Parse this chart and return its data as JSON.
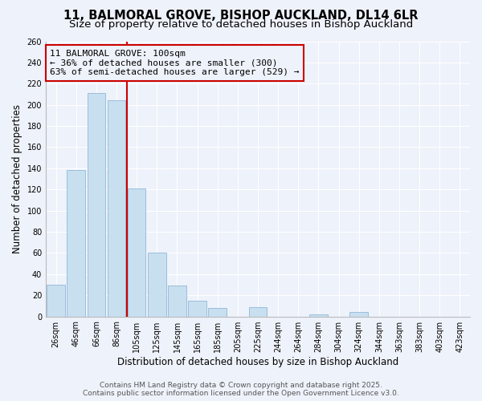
{
  "title_line1": "11, BALMORAL GROVE, BISHOP AUCKLAND, DL14 6LR",
  "title_line2": "Size of property relative to detached houses in Bishop Auckland",
  "xlabel": "Distribution of detached houses by size in Bishop Auckland",
  "ylabel": "Number of detached properties",
  "bar_color": "#c8dff0",
  "bar_edge_color": "#90b8d8",
  "bg_color": "#eef2fa",
  "grid_color": "#ffffff",
  "categories": [
    "26sqm",
    "46sqm",
    "66sqm",
    "86sqm",
    "105sqm",
    "125sqm",
    "145sqm",
    "165sqm",
    "185sqm",
    "205sqm",
    "225sqm",
    "244sqm",
    "264sqm",
    "284sqm",
    "304sqm",
    "324sqm",
    "344sqm",
    "363sqm",
    "383sqm",
    "403sqm",
    "423sqm"
  ],
  "values": [
    30,
    138,
    211,
    204,
    121,
    60,
    29,
    15,
    8,
    0,
    9,
    0,
    0,
    2,
    0,
    4,
    0,
    0,
    0,
    0,
    0
  ],
  "vline_x_index": 3,
  "annotation_line1": "11 BALMORAL GROVE: 100sqm",
  "annotation_line2": "← 36% of detached houses are smaller (300)",
  "annotation_line3": "63% of semi-detached houses are larger (529) →",
  "vline_color": "#cc0000",
  "annotation_box_edge": "#cc0000",
  "ylim": [
    0,
    260
  ],
  "yticks": [
    0,
    20,
    40,
    60,
    80,
    100,
    120,
    140,
    160,
    180,
    200,
    220,
    240,
    260
  ],
  "footer_line1": "Contains HM Land Registry data © Crown copyright and database right 2025.",
  "footer_line2": "Contains public sector information licensed under the Open Government Licence v3.0.",
  "title_fontsize": 10.5,
  "subtitle_fontsize": 9.5,
  "axis_label_fontsize": 8.5,
  "tick_fontsize": 7,
  "annotation_fontsize": 8,
  "footer_fontsize": 6.5
}
